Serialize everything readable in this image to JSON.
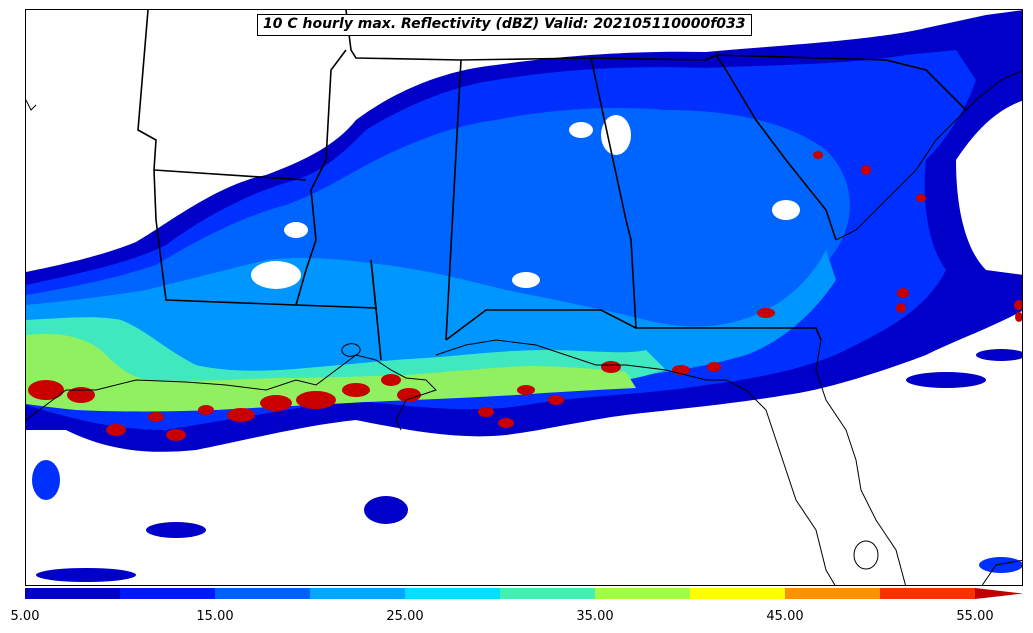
{
  "title": "10 C hourly max. Reflectivity (dBZ) Valid: 202105110000f033",
  "colorbar": {
    "colors": [
      "#0000c8",
      "#0030ff",
      "#0064ff",
      "#0096ff",
      "#00c8ff",
      "#40e8c0",
      "#90f060",
      "#d0f020",
      "#ffff00",
      "#ffb000",
      "#ff7000",
      "#ff3000",
      "#c80000",
      "#800000"
    ],
    "levels": [
      5,
      10,
      15,
      20,
      25,
      30,
      35,
      40,
      45,
      50,
      55
    ],
    "tick_labels": [
      "5.00",
      "15.00",
      "25.00",
      "35.00",
      "45.00",
      "55.00"
    ],
    "extend": "max"
  }
}
